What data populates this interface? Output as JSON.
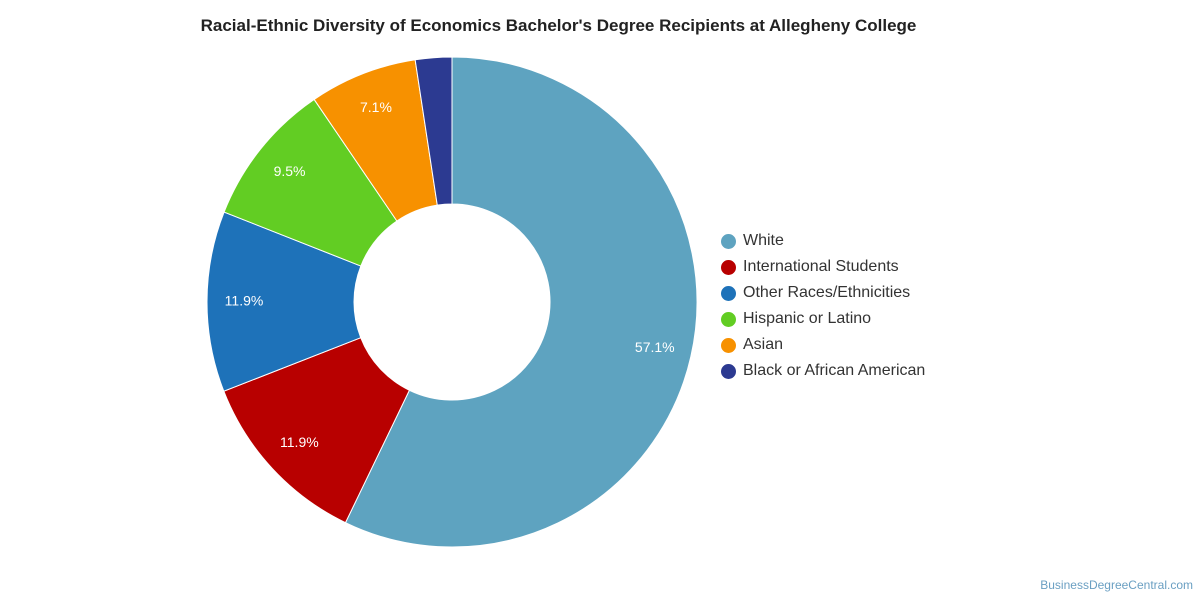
{
  "chart_data": {
    "type": "pie",
    "variant": "donut",
    "title": "Racial-Ethnic Diversity of Economics Bachelor's Degree Recipients at Allegheny College",
    "unit": "%",
    "slices": [
      {
        "label": "White",
        "value": 57.1,
        "display": "57.1%",
        "color": "#5ea3c0"
      },
      {
        "label": "International Students",
        "value": 11.9,
        "display": "11.9%",
        "color": "#b80000"
      },
      {
        "label": "Other Races/Ethnicities",
        "value": 11.9,
        "display": "11.9%",
        "color": "#1e72b9"
      },
      {
        "label": "Hispanic or Latino",
        "value": 9.5,
        "display": "9.5%",
        "color": "#62cd23"
      },
      {
        "label": "Asian",
        "value": 7.1,
        "display": "7.1%",
        "color": "#f79100"
      },
      {
        "label": "Black or African American",
        "value": 2.4,
        "display": "",
        "color": "#2c3a91"
      }
    ],
    "legend_position": "right"
  },
  "credit": "BusinessDegreeCentral.com"
}
